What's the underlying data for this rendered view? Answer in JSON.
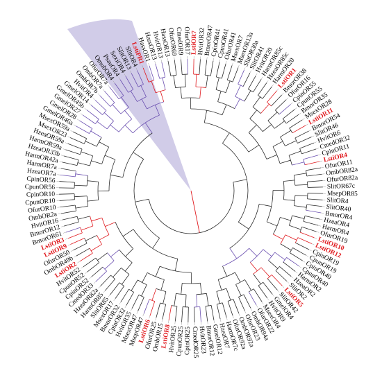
{
  "figure": {
    "colors": {
      "default_label": "#000000",
      "highlight_label": "#e0191e",
      "branch_black": "#2b2b2b",
      "branch_red": "#e0191e",
      "branch_purple": "#6a4fb0",
      "clade_shade": "#c9c3e4"
    },
    "labels": [
      {
        "text": "HassOR13",
        "angle": 0.0,
        "color": "black"
      },
      {
        "text": "OfurOR69",
        "angle": 5.5,
        "color": "black"
      },
      {
        "text": "CmedOR9",
        "angle": 9.5,
        "color": "black"
      },
      {
        "text": "OfurOR17",
        "angle": 13.5,
        "color": "black"
      },
      {
        "text": "LstiOR7",
        "angle": 17.5,
        "color": "red"
      },
      {
        "text": "HvitOR32",
        "angle": 21.5,
        "color": "black"
      },
      {
        "text": "BmorOR47",
        "angle": 25.5,
        "color": "black"
      },
      {
        "text": "CpinOR41",
        "angle": 29.5,
        "color": "black"
      },
      {
        "text": "CpunOR41",
        "angle": 33.5,
        "color": "black"
      },
      {
        "text": "OfurOR41",
        "angle": 37.5,
        "color": "black"
      },
      {
        "text": "MsexOR7",
        "angle": 41.5,
        "color": "black"
      },
      {
        "text": "MsexOR13a",
        "angle": 45.5,
        "color": "black"
      },
      {
        "text": "SlitOR30a",
        "angle": 49.5,
        "color": "black"
      },
      {
        "text": "SlitOR41",
        "angle": 53.5,
        "color": "black"
      },
      {
        "text": "HvitOR20",
        "angle": 57.5,
        "color": "black"
      },
      {
        "text": "HarmOR85c",
        "angle": 61.5,
        "color": "black"
      },
      {
        "text": "HzeaOR85c",
        "angle": 65.5,
        "color": "black"
      },
      {
        "text": "HarmOR20",
        "angle": 69.5,
        "color": "black"
      },
      {
        "text": "LstiOR1",
        "angle": 73.5,
        "color": "red"
      },
      {
        "text": "BmorOR38",
        "angle": 77.5,
        "color": "black"
      },
      {
        "text": "OfurOR16",
        "angle": 81.5,
        "color": "black"
      },
      {
        "text": "CpinOR55",
        "angle": 85.5,
        "color": "black"
      },
      {
        "text": "CpunOR55",
        "angle": 89.5,
        "color": "black"
      },
      {
        "text": "BmorOR35",
        "angle": 93.5,
        "color": "black"
      },
      {
        "text": "MsexOR28",
        "angle": 97.5,
        "color": "black"
      },
      {
        "text": "LstiOR11",
        "angle": 101.5,
        "color": "red"
      },
      {
        "text": "BmorOR54",
        "angle": 105.5,
        "color": "black"
      },
      {
        "text": "SlitOR46",
        "angle": 109.5,
        "color": "black"
      },
      {
        "text": "HvitOR6",
        "angle": 113.5,
        "color": "black"
      },
      {
        "text": "CmedOR32",
        "angle": 117.5,
        "color": "black"
      },
      {
        "text": "CpinOR11",
        "angle": 121.5,
        "color": "black"
      },
      {
        "text": "LstiOR4",
        "angle": 125.5,
        "color": "red"
      },
      {
        "text": "OfurOR11",
        "angle": 129.5,
        "color": "black"
      },
      {
        "text": "OmbOR82a",
        "angle": 133.5,
        "color": "black"
      },
      {
        "text": "OfurOR82a",
        "angle": 137.5,
        "color": "black"
      },
      {
        "text": "SlitOR67c",
        "angle": 141.5,
        "color": "black"
      },
      {
        "text": "MsepOR85",
        "angle": 145.5,
        "color": "black"
      },
      {
        "text": "SlitOR4",
        "angle": 149.5,
        "color": "black"
      },
      {
        "text": "SlitOR40",
        "angle": 153.5,
        "color": "black"
      },
      {
        "text": "BmorOR4",
        "angle": 157.5,
        "color": "black"
      },
      {
        "text": "HzeaOR4",
        "angle": 161.5,
        "color": "black"
      },
      {
        "text": "HarmOR4",
        "angle": 165.5,
        "color": "black"
      },
      {
        "text": "OfurOR19",
        "angle": 169.5,
        "color": "black"
      },
      {
        "text": "LstiOR10",
        "angle": 173.5,
        "color": "red"
      },
      {
        "text": "LstiOR12",
        "angle": 177.5,
        "color": "red"
      },
      {
        "text": "CpinOR19",
        "angle": 181.5,
        "color": "black"
      },
      {
        "text": "CpunOR19",
        "angle": 185.5,
        "color": "black"
      },
      {
        "text": "CpinOR40",
        "angle": 189.5,
        "color": "black"
      },
      {
        "text": "CpunOR40",
        "angle": 193.5,
        "color": "black"
      },
      {
        "text": "HarmOR2",
        "angle": 197.5,
        "color": "black"
      },
      {
        "text": "HzeaOR2",
        "angle": 201.5,
        "color": "black"
      },
      {
        "text": "SlitOR2",
        "angle": 205.5,
        "color": "black"
      },
      {
        "text": "LstiOR5",
        "angle": 209.5,
        "color": "red"
      },
      {
        "text": "SlitOR42",
        "angle": 213.5,
        "color": "black"
      },
      {
        "text": "GmelOR4",
        "angle": 217.5,
        "color": "black"
      },
      {
        "text": "HvitOR9",
        "angle": 221.5,
        "color": "black"
      },
      {
        "text": "MsexOR4",
        "angle": 225.5,
        "color": "black"
      },
      {
        "text": "OfurOR22",
        "angle": 229.5,
        "color": "black"
      },
      {
        "text": "OmbOR94a",
        "angle": 233.5,
        "color": "black"
      },
      {
        "text": "OfurOR23",
        "angle": 237.5,
        "color": "black"
      },
      {
        "text": "OmbOR92a",
        "angle": 241.5,
        "color": "black"
      },
      {
        "text": "OfurOR92a",
        "angle": 245.5,
        "color": "black"
      },
      {
        "text": "HarmOR7c",
        "angle": 249.5,
        "color": "black"
      },
      {
        "text": "HzeaOR7",
        "angle": 253.5,
        "color": "black"
      },
      {
        "text": "GmelOR12",
        "angle": 257.5,
        "color": "black"
      },
      {
        "text": "BmorOR12",
        "angle": 261.5,
        "color": "black"
      },
      {
        "text": "HvitOR23",
        "angle": 265.5,
        "color": "black"
      },
      {
        "text": "CmedOR25",
        "angle": 269.5,
        "color": "black"
      },
      {
        "text": "CpinOR25",
        "angle": 273.5,
        "color": "black"
      },
      {
        "text": "CpunOR25",
        "angle": 277.5,
        "color": "black"
      },
      {
        "text": "HvitOR25",
        "angle": 281.5,
        "color": "black"
      },
      {
        "text": "LstiOR8",
        "angle": 285.5,
        "color": "red"
      },
      {
        "text": "OmbOR15",
        "angle": 289.5,
        "color": "black"
      },
      {
        "text": "OfurOR25",
        "angle": 293.5,
        "color": "black"
      },
      {
        "text": "LstiOR6",
        "angle": 297.5,
        "color": "red"
      },
      {
        "text": "MsepOR47",
        "angle": 301.5,
        "color": "black"
      },
      {
        "text": "MsexOR47",
        "angle": 305.5,
        "color": "black"
      },
      {
        "text": "HvitOR35",
        "angle": 309.5,
        "color": "black"
      },
      {
        "text": "CpinOR32",
        "angle": 313.5,
        "color": "black"
      },
      {
        "text": "BmorOR32",
        "angle": 317.5,
        "color": "black"
      },
      {
        "text": "MsexOR17",
        "angle": 321.5,
        "color": "black"
      },
      {
        "text": "SlitOR85",
        "angle": 325.5,
        "color": "black"
      },
      {
        "text": "HarmOR85",
        "angle": 329.5,
        "color": "black"
      },
      {
        "text": "HzeaOR82a",
        "angle": 333.5,
        "color": "black"
      },
      {
        "text": "CmedOR33",
        "angle": 337.5,
        "color": "black"
      },
      {
        "text": "CpinOR52",
        "angle": 341.5,
        "color": "black"
      },
      {
        "text": "CpunOR52",
        "angle": 345.5,
        "color": "black"
      },
      {
        "text": "HvitOR52",
        "angle": 349.5,
        "color": "black"
      },
      {
        "text": "LstiOR2",
        "angle": 353.5,
        "color": "red"
      },
      {
        "text": "OmbOR49b",
        "angle": 357.5,
        "color": "black"
      },
      {
        "text": "OfurOR50",
        "angle": 361.5,
        "color": "black"
      },
      {
        "text": "LstiOR9",
        "angle": 365.5,
        "color": "red"
      },
      {
        "text": "LstiOR3",
        "angle": 369.5,
        "color": "red"
      },
      {
        "text": "BmorOR61",
        "angle": 373.5,
        "color": "black"
      },
      {
        "text": "BmorOR12",
        "angle": 377.5,
        "color": "black"
      },
      {
        "text": "HvitOR16",
        "angle": 381.5,
        "color": "black"
      },
      {
        "text": "OmbOR2a",
        "angle": 385.5,
        "color": "black"
      },
      {
        "text": "OfurOR10",
        "angle": 389.5,
        "color": "black"
      },
      {
        "text": "CpunOR10",
        "angle": 393.5,
        "color": "black"
      },
      {
        "text": "CpinOR10",
        "angle": 397.5,
        "color": "black"
      },
      {
        "text": "CpunOR56",
        "angle": 401.5,
        "color": "black"
      },
      {
        "text": "CpinOR56",
        "angle": 405.5,
        "color": "black"
      },
      {
        "text": "HzeaOR7a",
        "angle": 409.5,
        "color": "black"
      },
      {
        "text": "HarmOR7a",
        "angle": 413.5,
        "color": "black"
      },
      {
        "text": "HarmOR42a",
        "angle": 417.5,
        "color": "black"
      },
      {
        "text": "HzeaOR33b",
        "angle": 421.5,
        "color": "black"
      },
      {
        "text": "HarmOR59a",
        "angle": 425.5,
        "color": "black"
      },
      {
        "text": "HzeaOR59a",
        "angle": 429.5,
        "color": "black"
      },
      {
        "text": "MsexOR23",
        "angle": 433.5,
        "color": "black"
      },
      {
        "text": "MsexOR59a",
        "angle": 437.5,
        "color": "black"
      },
      {
        "text": "GmelOR46a",
        "angle": 441.5,
        "color": "black"
      },
      {
        "text": "GmelOR28",
        "angle": 445.5,
        "color": "black"
      },
      {
        "text": "GmelOR27",
        "angle": 449.5,
        "color": "black"
      },
      {
        "text": "GmelOR45b",
        "angle": 453.5,
        "color": "black"
      },
      {
        "text": "GmelOR14",
        "angle": 457.5,
        "color": "black"
      },
      {
        "text": "HvitOR4",
        "angle": 461.5,
        "color": "black"
      },
      {
        "text": "OmbOR7b",
        "angle": 465.5,
        "color": "black"
      },
      {
        "text": "OmbOR7a",
        "angle": 469.5,
        "color": "black"
      },
      {
        "text": "OfurOR7a",
        "angle": 473.5,
        "color": "black"
      },
      {
        "text": "OmubOR4",
        "angle": 477.5,
        "color": "black"
      },
      {
        "text": "PsauOR4",
        "angle": 481.5,
        "color": "black"
      },
      {
        "text": "SexiOR4",
        "angle": 485.5,
        "color": "black"
      },
      {
        "text": "SlitOR13",
        "angle": 489.5,
        "color": "black"
      },
      {
        "text": "SlitOR4",
        "angle": 493.5,
        "color": "black"
      },
      {
        "text": "LstiPR1",
        "angle": 497.5,
        "color": "red"
      },
      {
        "text": "HassOR1",
        "angle": 501.5,
        "color": "black"
      },
      {
        "text": "HassOR13",
        "angle": 505.5,
        "color": "black"
      },
      {
        "text": "HvitOR13",
        "angle": 509.5,
        "color": "black"
      }
    ]
  }
}
